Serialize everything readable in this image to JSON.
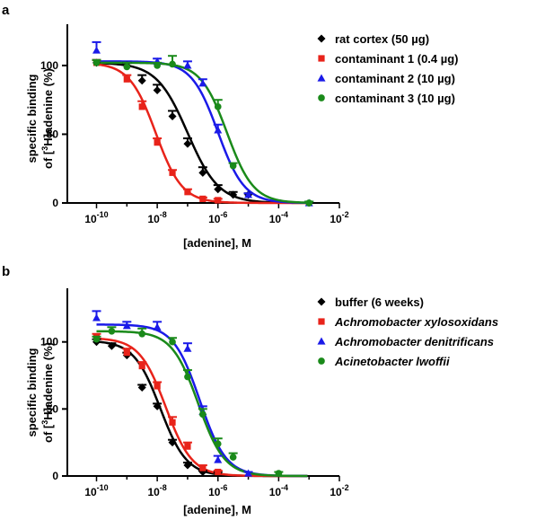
{
  "chart_data": [
    {
      "panel_label": "a",
      "type": "scatter",
      "xscale": "log10",
      "xlim_exp": [
        -11,
        -2
      ],
      "ylim": [
        0,
        130
      ],
      "xlabel": "[adenine], M",
      "ylabel": {
        "line1": "specific binding",
        "line2_pre": "of [",
        "line2_sup": "3",
        "line2_post": "H]adenine (%)"
      },
      "x_ticks": [
        {
          "base": "10",
          "exp": "-10",
          "log": -10
        },
        {
          "base": "10",
          "exp": "-8",
          "log": -8
        },
        {
          "base": "10",
          "exp": "-6",
          "log": -6
        },
        {
          "base": "10",
          "exp": "-4",
          "log": -4
        },
        {
          "base": "10",
          "exp": "-2",
          "log": -2
        }
      ],
      "y_ticks": [
        {
          "label": "0",
          "value": 0
        },
        {
          "label": "50",
          "value": 50
        },
        {
          "label": "100",
          "value": 100
        }
      ],
      "legend_position": "top-right",
      "series": [
        {
          "name": "rat cortex (50 µg)",
          "italic": false,
          "color": "#000000",
          "marker": "diamond",
          "fit": {
            "top": 102,
            "bottom": 0,
            "log_ic50": -7.0,
            "hill": 0.85
          },
          "points": [
            {
              "logx": -10,
              "y": 102,
              "err": 2
            },
            {
              "logx": -9,
              "y": 100,
              "err": 2
            },
            {
              "logx": -8.5,
              "y": 89,
              "err": 4
            },
            {
              "logx": -8,
              "y": 82,
              "err": 4
            },
            {
              "logx": -7.5,
              "y": 63,
              "err": 4
            },
            {
              "logx": -7,
              "y": 43,
              "err": 4
            },
            {
              "logx": -6.5,
              "y": 22,
              "err": 4
            },
            {
              "logx": -6,
              "y": 10,
              "err": 3
            },
            {
              "logx": -5.5,
              "y": 6,
              "err": 2
            },
            {
              "logx": -5,
              "y": 6,
              "err": 1
            }
          ]
        },
        {
          "name": "contaminant 1 (0.4 µg)",
          "italic": false,
          "color": "#e8231a",
          "marker": "square",
          "fit": {
            "top": 102,
            "bottom": 0,
            "log_ic50": -8.05,
            "hill": 1.0
          },
          "points": [
            {
              "logx": -10,
              "y": 102,
              "err": 2
            },
            {
              "logx": -9,
              "y": 90,
              "err": 3
            },
            {
              "logx": -8.5,
              "y": 70,
              "err": 4
            },
            {
              "logx": -8,
              "y": 44,
              "err": 3
            },
            {
              "logx": -7.5,
              "y": 22,
              "err": 2
            },
            {
              "logx": -7,
              "y": 8,
              "err": 2
            },
            {
              "logx": -6.5,
              "y": 3,
              "err": 1
            },
            {
              "logx": -6,
              "y": 2,
              "err": 1
            }
          ]
        },
        {
          "name": "contaminant 2 (10 µg)",
          "italic": false,
          "color": "#1a1ae8",
          "marker": "triangle",
          "fit": {
            "top": 103,
            "bottom": 0,
            "log_ic50": -6.0,
            "hill": 1.0
          },
          "points": [
            {
              "logx": -10,
              "y": 111,
              "err": 6
            },
            {
              "logx": -8,
              "y": 103,
              "err": 2
            },
            {
              "logx": -7,
              "y": 100,
              "err": 3
            },
            {
              "logx": -6.5,
              "y": 87,
              "err": 3
            },
            {
              "logx": -6,
              "y": 53,
              "err": 4
            },
            {
              "logx": -5,
              "y": 6,
              "err": 1
            },
            {
              "logx": -3,
              "y": 0,
              "err": 1
            }
          ]
        },
        {
          "name": "contaminant 3 (10 µg)",
          "italic": false,
          "color": "#1a8a1a",
          "marker": "circle",
          "fit": {
            "top": 102,
            "bottom": 0,
            "log_ic50": -5.7,
            "hill": 1.0
          },
          "points": [
            {
              "logx": -10,
              "y": 102,
              "err": 2
            },
            {
              "logx": -9,
              "y": 99,
              "err": 3
            },
            {
              "logx": -8,
              "y": 100,
              "err": 2
            },
            {
              "logx": -7.5,
              "y": 101,
              "err": 6
            },
            {
              "logx": -6,
              "y": 70,
              "err": 5
            },
            {
              "logx": -5.5,
              "y": 27,
              "err": 2
            },
            {
              "logx": -3,
              "y": 0,
              "err": 1
            }
          ]
        }
      ]
    },
    {
      "panel_label": "b",
      "type": "scatter",
      "xscale": "log10",
      "xlim_exp": [
        -11,
        -2
      ],
      "ylim": [
        0,
        140
      ],
      "xlabel": "[adenine], M",
      "ylabel": {
        "line1": "specific binding",
        "line2_pre": "of [",
        "line2_sup": "3",
        "line2_post": "H]adenine (%)"
      },
      "x_ticks": [
        {
          "base": "10",
          "exp": "-10",
          "log": -10
        },
        {
          "base": "10",
          "exp": "-8",
          "log": -8
        },
        {
          "base": "10",
          "exp": "-6",
          "log": -6
        },
        {
          "base": "10",
          "exp": "-4",
          "log": -4
        },
        {
          "base": "10",
          "exp": "-2",
          "log": -2
        }
      ],
      "y_ticks": [
        {
          "label": "0",
          "value": 0
        },
        {
          "label": "50",
          "value": 50
        },
        {
          "label": "100",
          "value": 100
        }
      ],
      "legend_position": "top-right",
      "series": [
        {
          "name": "buffer (6 weeks)",
          "italic": false,
          "color": "#000000",
          "marker": "diamond",
          "fit": {
            "top": 101,
            "bottom": 0,
            "log_ic50": -7.9,
            "hill": 1.0
          },
          "points": [
            {
              "logx": -10,
              "y": 100,
              "err": 2
            },
            {
              "logx": -9.5,
              "y": 97,
              "err": 2
            },
            {
              "logx": -9,
              "y": 90,
              "err": 2
            },
            {
              "logx": -8.5,
              "y": 66,
              "err": 2
            },
            {
              "logx": -8,
              "y": 52,
              "err": 2
            },
            {
              "logx": -7.5,
              "y": 25,
              "err": 2
            },
            {
              "logx": -7,
              "y": 8,
              "err": 2
            },
            {
              "logx": -6.5,
              "y": 3,
              "err": 1
            },
            {
              "logx": -6,
              "y": 2,
              "err": 1
            }
          ]
        },
        {
          "name": "Achromobacter xylosoxidans",
          "italic": true,
          "color": "#e8231a",
          "marker": "square",
          "fit": {
            "top": 103,
            "bottom": 0,
            "log_ic50": -7.72,
            "hill": 1.0
          },
          "points": [
            {
              "logx": -10,
              "y": 104,
              "err": 2
            },
            {
              "logx": -9,
              "y": 92,
              "err": 3
            },
            {
              "logx": -8.5,
              "y": 82,
              "err": 3
            },
            {
              "logx": -8,
              "y": 67,
              "err": 3
            },
            {
              "logx": -7.5,
              "y": 40,
              "err": 4
            },
            {
              "logx": -7,
              "y": 22,
              "err": 3
            },
            {
              "logx": -6.5,
              "y": 6,
              "err": 2
            },
            {
              "logx": -6,
              "y": 3,
              "err": 1
            }
          ]
        },
        {
          "name": "Achromobacter denitrificans",
          "italic": true,
          "color": "#1a1ae8",
          "marker": "triangle",
          "fit": {
            "top": 113,
            "bottom": 0,
            "log_ic50": -6.6,
            "hill": 1.0
          },
          "points": [
            {
              "logx": -10,
              "y": 118,
              "err": 5
            },
            {
              "logx": -9,
              "y": 112,
              "err": 3
            },
            {
              "logx": -8,
              "y": 111,
              "err": 4
            },
            {
              "logx": -7,
              "y": 95,
              "err": 4
            },
            {
              "logx": -6.5,
              "y": 48,
              "err": 4
            },
            {
              "logx": -6,
              "y": 12,
              "err": 3
            },
            {
              "logx": -5,
              "y": 2,
              "err": 1
            }
          ]
        },
        {
          "name": "Acinetobacter lwoffii",
          "italic": true,
          "color": "#1a8a1a",
          "marker": "circle",
          "fit": {
            "top": 108,
            "bottom": 0,
            "log_ic50": -6.65,
            "hill": 1.0
          },
          "points": [
            {
              "logx": -10,
              "y": 102,
              "err": 2
            },
            {
              "logx": -9.5,
              "y": 108,
              "err": 3
            },
            {
              "logx": -8.5,
              "y": 106,
              "err": 4
            },
            {
              "logx": -7.5,
              "y": 100,
              "err": 3
            },
            {
              "logx": -7,
              "y": 74,
              "err": 5
            },
            {
              "logx": -6.5,
              "y": 46,
              "err": 4
            },
            {
              "logx": -6,
              "y": 24,
              "err": 4
            },
            {
              "logx": -5.5,
              "y": 14,
              "err": 3
            },
            {
              "logx": -4,
              "y": 2,
              "err": 1
            }
          ]
        }
      ]
    }
  ]
}
